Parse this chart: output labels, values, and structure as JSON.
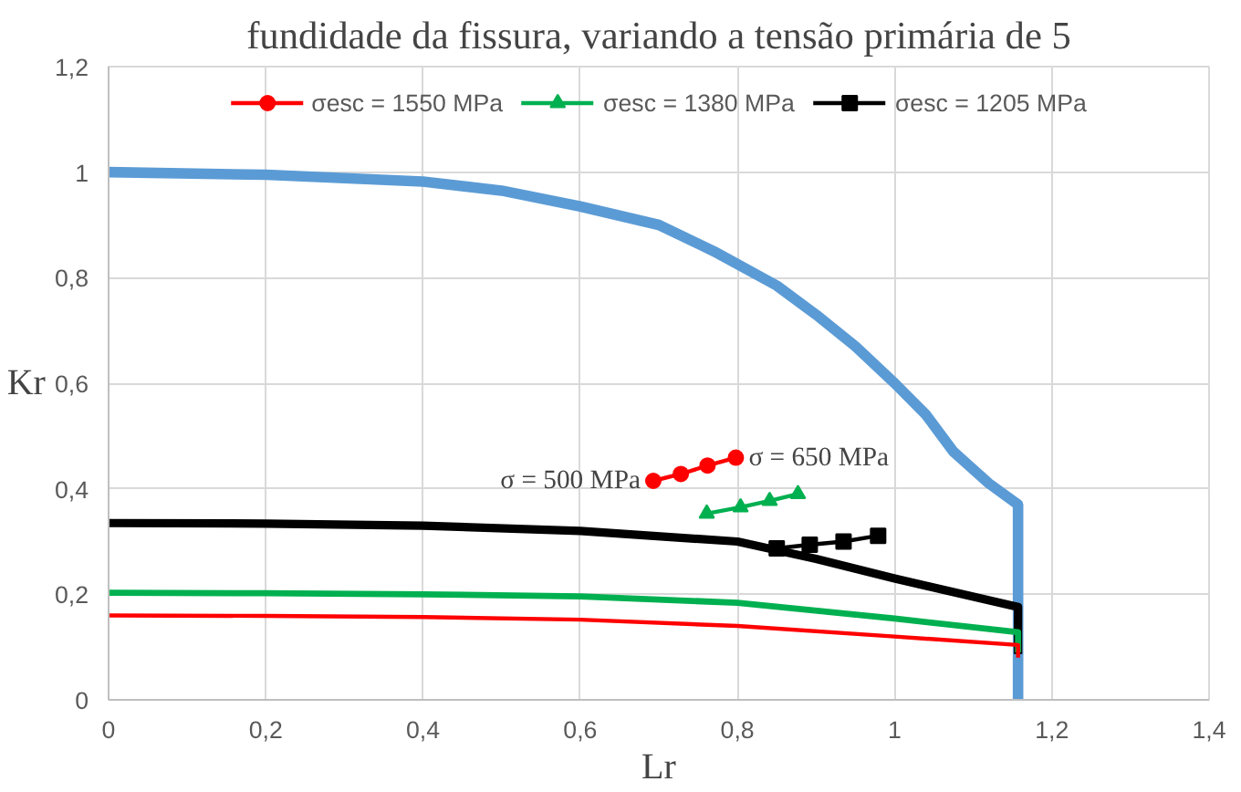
{
  "chart_data": {
    "type": "line",
    "title": "fundidade da fissura, variando a tensão primária de 5",
    "xlabel": "Lr",
    "ylabel": "Kr",
    "xlim": [
      0,
      1.4
    ],
    "ylim": [
      0,
      1.2
    ],
    "xticks": [
      0,
      {
        "value": 0.2,
        "label": "0,2"
      },
      {
        "value": 0.4,
        "label": "0,4"
      },
      {
        "value": 0.6,
        "label": "0,6"
      },
      {
        "value": 0.8,
        "label": "0,8"
      },
      1,
      {
        "value": 1.2,
        "label": "1,2"
      },
      {
        "value": 1.4,
        "label": "1,4"
      }
    ],
    "yticks": [
      0,
      {
        "value": 0.2,
        "label": "0,2"
      },
      {
        "value": 0.4,
        "label": "0,4"
      },
      {
        "value": 0.6,
        "label": "0,6"
      },
      {
        "value": 0.8,
        "label": "0,8"
      },
      1,
      {
        "value": 1.2,
        "label": "1,2"
      }
    ],
    "grid": true,
    "legend": "top",
    "line_style": "solid",
    "series": [
      {
        "color": "#5b9bd5",
        "marker": "none",
        "x": [
          0,
          0.2,
          0.4,
          0.5,
          0.6,
          0.7,
          0.77,
          0.85,
          0.9,
          0.95,
          1.0,
          1.04,
          1.075,
          1.12,
          1.157,
          1.157
        ],
        "values": [
          1.0,
          0.995,
          0.982,
          0.965,
          0.935,
          0.9,
          0.85,
          0.785,
          0.73,
          0.67,
          0.6,
          0.54,
          0.47,
          0.41,
          0.37,
          0
        ]
      },
      {
        "color": "#000000",
        "marker": "none",
        "x": [
          0,
          0.2,
          0.4,
          0.6,
          0.8,
          0.9,
          1.0,
          1.157,
          1.157
        ],
        "values": [
          0.335,
          0.334,
          0.33,
          0.32,
          0.3,
          0.267,
          0.23,
          0.176,
          0.087
        ]
      },
      {
        "color": "#00b050",
        "marker": "none",
        "x": [
          0,
          0.2,
          0.4,
          0.6,
          0.8,
          1.0,
          1.157,
          1.157
        ],
        "values": [
          0.203,
          0.202,
          0.2,
          0.196,
          0.184,
          0.154,
          0.128,
          0.09
        ]
      },
      {
        "color": "#ff0000",
        "marker": "none",
        "x": [
          0,
          0.2,
          0.4,
          0.6,
          0.8,
          1.0,
          1.157,
          1.157
        ],
        "values": [
          0.16,
          0.159,
          0.157,
          0.152,
          0.14,
          0.12,
          0.104,
          0.08
        ]
      },
      {
        "name": "σesc = 1550 MPa",
        "color": "#ff0000",
        "marker": "circle",
        "x": [
          0.693,
          0.728,
          0.762,
          0.798
        ],
        "values": [
          0.415,
          0.428,
          0.444,
          0.459
        ]
      },
      {
        "name": "σesc = 1380 MPa",
        "color": "#00b050",
        "marker": "triangle",
        "x": [
          0.761,
          0.804,
          0.841,
          0.877
        ],
        "values": [
          0.353,
          0.365,
          0.377,
          0.39
        ]
      },
      {
        "name": "σesc = 1205 MPa",
        "color": "#000000",
        "marker": "square",
        "x": [
          0.85,
          0.892,
          0.935,
          0.979
        ],
        "values": [
          0.287,
          0.294,
          0.3,
          0.311
        ]
      }
    ],
    "annotations": [
      {
        "text": "σ = 500 MPa",
        "x": 0.693,
        "y": 0.415
      },
      {
        "text": "σ = 650 MPa",
        "x": 0.798,
        "y": 0.459
      }
    ]
  }
}
